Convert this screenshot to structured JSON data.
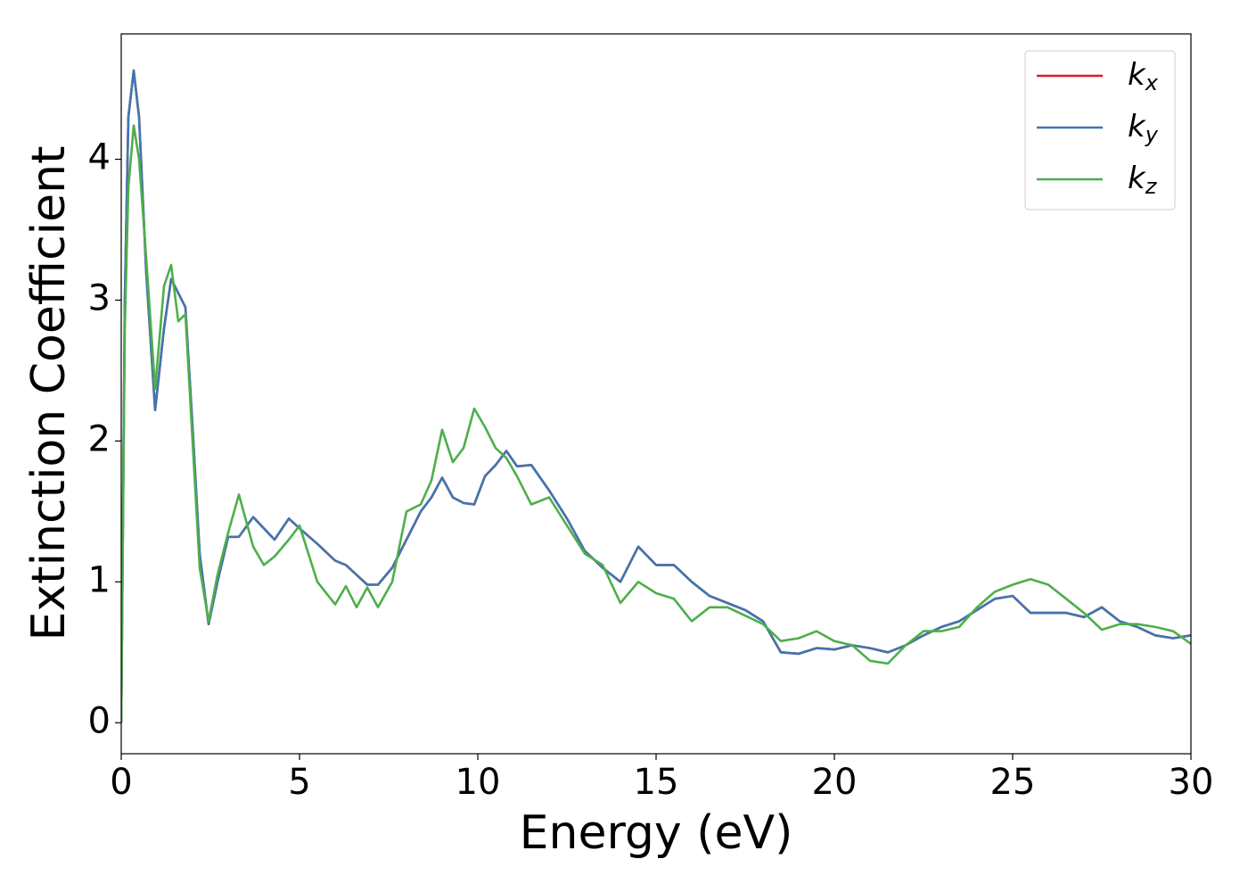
{
  "chart_data": {
    "type": "line",
    "xlabel": "Energy (eV)",
    "ylabel": "Extinction Coefficient",
    "xlim": [
      0,
      30
    ],
    "ylim": [
      -0.22,
      4.89
    ],
    "xticks": [
      0,
      5,
      10,
      15,
      20,
      25,
      30
    ],
    "yticks": [
      0,
      1,
      2,
      3,
      4
    ],
    "grid": false,
    "legend": "upper right",
    "x": [
      0,
      0.1,
      0.2,
      0.35,
      0.5,
      0.7,
      0.95,
      1.2,
      1.4,
      1.6,
      1.8,
      2.0,
      2.2,
      2.45,
      2.7,
      3.0,
      3.3,
      3.7,
      4.0,
      4.3,
      4.7,
      5.0,
      5.5,
      6.0,
      6.3,
      6.6,
      6.9,
      7.2,
      7.6,
      8.0,
      8.4,
      8.7,
      9.0,
      9.3,
      9.6,
      9.9,
      10.2,
      10.5,
      10.8,
      11.1,
      11.5,
      12,
      12.5,
      13,
      13.5,
      14,
      14.5,
      15,
      15.5,
      16,
      16.5,
      17,
      17.5,
      18,
      18.5,
      19,
      19.5,
      20,
      20.5,
      21,
      21.5,
      22,
      22.5,
      23,
      23.5,
      24,
      24.5,
      25,
      25.5,
      26,
      26.5,
      27,
      27.5,
      28,
      28.5,
      29,
      29.5,
      30
    ],
    "series": [
      {
        "name": "kx",
        "color": "#e41a1c",
        "values": [
          0,
          3.0,
          4.3,
          4.63,
          4.3,
          3.2,
          2.22,
          2.8,
          3.15,
          3.05,
          2.95,
          2.1,
          1.2,
          0.7,
          1.0,
          1.32,
          1.32,
          1.46,
          1.38,
          1.3,
          1.45,
          1.38,
          1.27,
          1.15,
          1.12,
          1.05,
          0.98,
          0.98,
          1.1,
          1.3,
          1.5,
          1.6,
          1.74,
          1.6,
          1.56,
          1.55,
          1.75,
          1.83,
          1.93,
          1.82,
          1.83,
          1.65,
          1.45,
          1.22,
          1.1,
          1.0,
          1.25,
          1.12,
          1.12,
          1.0,
          0.9,
          0.85,
          0.8,
          0.72,
          0.5,
          0.49,
          0.53,
          0.52,
          0.55,
          0.53,
          0.5,
          0.55,
          0.62,
          0.68,
          0.72,
          0.8,
          0.88,
          0.9,
          0.78,
          0.78,
          0.78,
          0.75,
          0.82,
          0.72,
          0.68,
          0.62,
          0.6,
          0.62
        ]
      },
      {
        "name": "ky",
        "color": "#3f76b0",
        "values": [
          0,
          3.0,
          4.3,
          4.63,
          4.3,
          3.2,
          2.22,
          2.8,
          3.15,
          3.05,
          2.95,
          2.1,
          1.2,
          0.7,
          1.0,
          1.32,
          1.32,
          1.46,
          1.38,
          1.3,
          1.45,
          1.38,
          1.27,
          1.15,
          1.12,
          1.05,
          0.98,
          0.98,
          1.1,
          1.3,
          1.5,
          1.6,
          1.74,
          1.6,
          1.56,
          1.55,
          1.75,
          1.83,
          1.93,
          1.82,
          1.83,
          1.65,
          1.45,
          1.22,
          1.1,
          1.0,
          1.25,
          1.12,
          1.12,
          1.0,
          0.9,
          0.85,
          0.8,
          0.72,
          0.5,
          0.49,
          0.53,
          0.52,
          0.55,
          0.53,
          0.5,
          0.55,
          0.62,
          0.68,
          0.72,
          0.8,
          0.88,
          0.9,
          0.78,
          0.78,
          0.78,
          0.75,
          0.82,
          0.72,
          0.68,
          0.62,
          0.6,
          0.62
        ]
      },
      {
        "name": "kz",
        "color": "#4daf4a",
        "values": [
          0,
          2.8,
          3.8,
          4.24,
          4.0,
          3.3,
          2.37,
          3.1,
          3.25,
          2.85,
          2.9,
          2.0,
          1.1,
          0.72,
          1.05,
          1.35,
          1.62,
          1.25,
          1.12,
          1.18,
          1.3,
          1.4,
          1.0,
          0.84,
          0.97,
          0.82,
          0.96,
          0.82,
          1.0,
          1.5,
          1.55,
          1.72,
          2.08,
          1.85,
          1.95,
          2.23,
          2.1,
          1.95,
          1.88,
          1.75,
          1.55,
          1.6,
          1.4,
          1.2,
          1.12,
          0.85,
          1.0,
          0.92,
          0.88,
          0.72,
          0.82,
          0.82,
          0.76,
          0.7,
          0.58,
          0.6,
          0.65,
          0.58,
          0.55,
          0.44,
          0.42,
          0.55,
          0.65,
          0.65,
          0.68,
          0.82,
          0.93,
          0.98,
          1.02,
          0.98,
          0.88,
          0.78,
          0.66,
          0.7,
          0.7,
          0.68,
          0.65,
          0.56
        ]
      }
    ]
  }
}
